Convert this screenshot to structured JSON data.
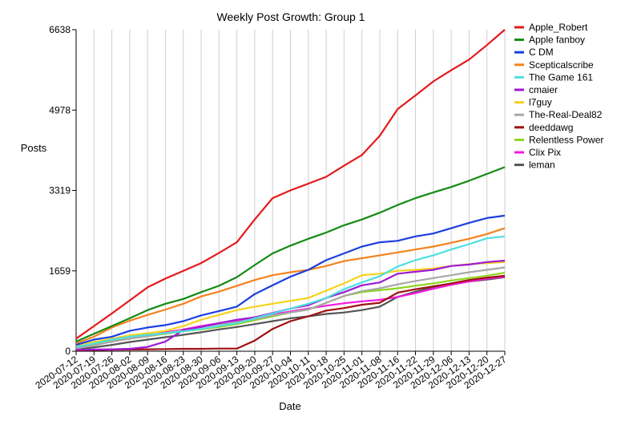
{
  "chart_data": {
    "type": "line",
    "title": "Weekly Post Growth: Group 1",
    "xlabel": "Date",
    "ylabel": "Posts",
    "grid": "vertical",
    "legend_position": "right",
    "ylim": [
      0,
      6638
    ],
    "yticks": [
      "0",
      "1659",
      "3319",
      "4978",
      "6638"
    ],
    "ytick_values": [
      0,
      1659,
      3319,
      4978,
      6638
    ],
    "x": [
      "2020-07-12",
      "2020-07-19",
      "2020-07-26",
      "2020-08-02",
      "2020-08-09",
      "2020-08-16",
      "2020-08-23",
      "2020-08-30",
      "2020-09-06",
      "2020-09-13",
      "2020-09-20",
      "2020-09-27",
      "2020-10-04",
      "2020-10-11",
      "2020-10-18",
      "2020-10-25",
      "2020-11-01",
      "2020-11-08",
      "2020-11-16",
      "2020-11-22",
      "2020-11-29",
      "2020-12-06",
      "2020-12-13",
      "2020-12-20",
      "2020-12-27"
    ],
    "series": [
      {
        "name": "Apple_Robert",
        "color": "#e31a1c",
        "values": [
          260,
          520,
          780,
          1050,
          1320,
          1500,
          1660,
          1820,
          2030,
          2250,
          2720,
          3160,
          3320,
          3460,
          3600,
          3830,
          4050,
          4450,
          5000,
          5280,
          5570,
          5800,
          6020,
          6320,
          6638
        ]
      },
      {
        "name": "Apple fanboy",
        "color": "#138a13",
        "values": [
          200,
          360,
          520,
          680,
          850,
          980,
          1080,
          1220,
          1350,
          1530,
          1780,
          2020,
          2180,
          2320,
          2450,
          2600,
          2720,
          2860,
          3020,
          3160,
          3280,
          3390,
          3520,
          3660,
          3800
        ]
      },
      {
        "name": "C DM",
        "color": "#1c3fe0",
        "values": [
          130,
          240,
          300,
          420,
          490,
          540,
          620,
          740,
          830,
          920,
          1180,
          1360,
          1540,
          1680,
          1880,
          2020,
          2160,
          2250,
          2280,
          2370,
          2430,
          2540,
          2650,
          2750,
          2800
        ]
      },
      {
        "name": "Scepticalscribe",
        "color": "#f5821f",
        "values": [
          160,
          300,
          490,
          630,
          750,
          860,
          980,
          1130,
          1230,
          1350,
          1470,
          1570,
          1630,
          1680,
          1760,
          1860,
          1920,
          1980,
          2040,
          2100,
          2160,
          2240,
          2320,
          2420,
          2540
        ]
      },
      {
        "name": "The Game 161",
        "color": "#4ee0e0",
        "values": [
          90,
          160,
          240,
          300,
          340,
          370,
          410,
          460,
          520,
          580,
          680,
          780,
          880,
          980,
          1100,
          1280,
          1420,
          1550,
          1750,
          1880,
          1980,
          2100,
          2210,
          2330,
          2370
        ]
      },
      {
        "name": "cmaier",
        "color": "#9f1ad6",
        "values": [
          30,
          35,
          40,
          50,
          90,
          200,
          440,
          500,
          580,
          650,
          700,
          790,
          880,
          950,
          1100,
          1220,
          1360,
          1420,
          1600,
          1640,
          1680,
          1760,
          1790,
          1840,
          1870
        ]
      },
      {
        "name": "l7guy",
        "color": "#f5d21c",
        "values": [
          110,
          190,
          260,
          330,
          370,
          420,
          520,
          650,
          750,
          850,
          920,
          980,
          1040,
          1100,
          1250,
          1400,
          1570,
          1600,
          1660,
          1680,
          1710,
          1760,
          1800,
          1820,
          1840
        ]
      },
      {
        "name": "The-Real-Deal82",
        "color": "#a8a8a8",
        "values": [
          60,
          120,
          200,
          260,
          310,
          370,
          440,
          500,
          560,
          600,
          660,
          740,
          800,
          860,
          1000,
          1140,
          1240,
          1300,
          1380,
          1450,
          1510,
          1570,
          1630,
          1680,
          1730
        ]
      },
      {
        "name": "deeddawg",
        "color": "#a01010",
        "values": [
          20,
          25,
          30,
          35,
          40,
          45,
          50,
          50,
          55,
          55,
          220,
          460,
          620,
          720,
          840,
          890,
          960,
          1000,
          1210,
          1280,
          1340,
          1400,
          1470,
          1520,
          1560
        ]
      },
      {
        "name": "Relentless Power",
        "color": "#8fd61c",
        "values": [
          100,
          150,
          210,
          260,
          310,
          360,
          410,
          450,
          500,
          560,
          640,
          720,
          800,
          860,
          1000,
          1140,
          1220,
          1260,
          1300,
          1350,
          1400,
          1460,
          1510,
          1560,
          1620
        ]
      },
      {
        "name": "Clix Pix",
        "color": "#f518e0",
        "values": [
          70,
          130,
          200,
          260,
          320,
          390,
          450,
          520,
          580,
          630,
          700,
          760,
          820,
          880,
          940,
          990,
          1030,
          1060,
          1120,
          1200,
          1290,
          1370,
          1440,
          1500,
          1540
        ]
      },
      {
        "name": "leman",
        "color": "#555555",
        "values": [
          40,
          80,
          130,
          190,
          240,
          290,
          340,
          390,
          450,
          500,
          560,
          620,
          680,
          720,
          770,
          800,
          850,
          920,
          1120,
          1230,
          1320,
          1380,
          1440,
          1480,
          1530
        ]
      }
    ]
  }
}
